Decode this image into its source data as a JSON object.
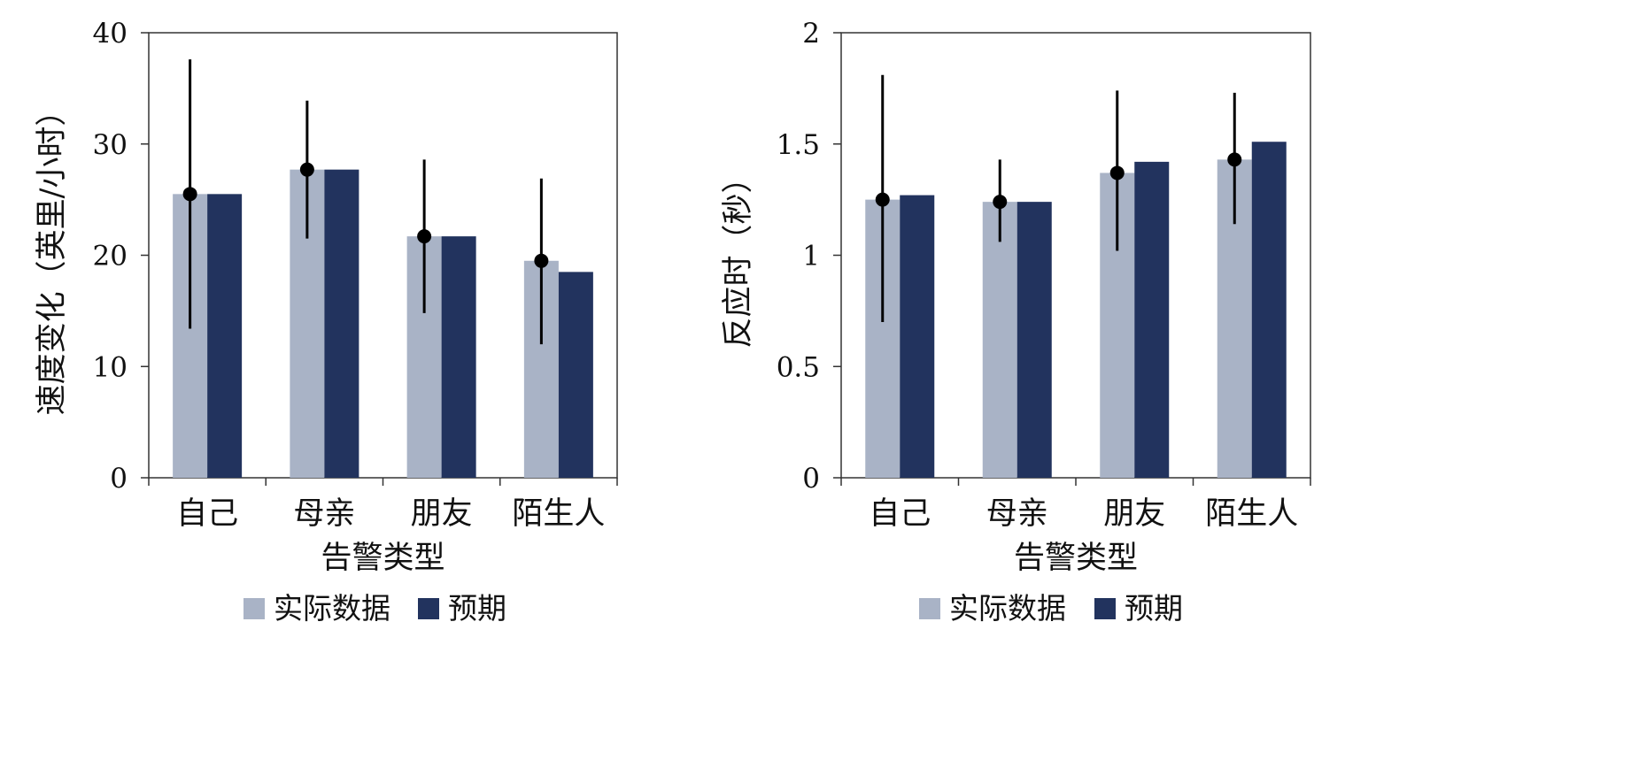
{
  "colors": {
    "actual": "#a9b3c6",
    "expected": "#22335e",
    "axis": "#333333",
    "marker": "#000000"
  },
  "chart_data": [
    {
      "type": "bar",
      "categories": [
        "自己",
        "母亲",
        "朋友",
        "陌生人"
      ],
      "series": [
        {
          "name": "实际数据",
          "values": [
            25.5,
            27.7,
            21.7,
            19.5
          ],
          "error_low": [
            13.4,
            21.5,
            14.8,
            12.0
          ],
          "error_high": [
            37.6,
            33.9,
            28.6,
            26.9
          ]
        },
        {
          "name": "预期",
          "values": [
            25.5,
            27.7,
            21.7,
            18.5
          ]
        }
      ],
      "xlabel": "告警类型",
      "ylabel": "速度变化（英里/小时）",
      "ylim": [
        0,
        40
      ],
      "yticks": [
        "0",
        "10",
        "20",
        "30",
        "40"
      ],
      "legend": "bottom"
    },
    {
      "type": "bar",
      "categories": [
        "自己",
        "母亲",
        "朋友",
        "陌生人"
      ],
      "series": [
        {
          "name": "实际数据",
          "values": [
            1.25,
            1.24,
            1.37,
            1.43
          ],
          "error_low": [
            0.7,
            1.06,
            1.02,
            1.14
          ],
          "error_high": [
            1.81,
            1.43,
            1.74,
            1.73
          ]
        },
        {
          "name": "预期",
          "values": [
            1.27,
            1.24,
            1.42,
            1.51
          ]
        }
      ],
      "xlabel": "告警类型",
      "ylabel": "反应时（秒）",
      "ylim": [
        0,
        2
      ],
      "yticks": [
        "0",
        "0.5",
        "1",
        "1.5",
        "2"
      ],
      "legend": "bottom"
    }
  ]
}
